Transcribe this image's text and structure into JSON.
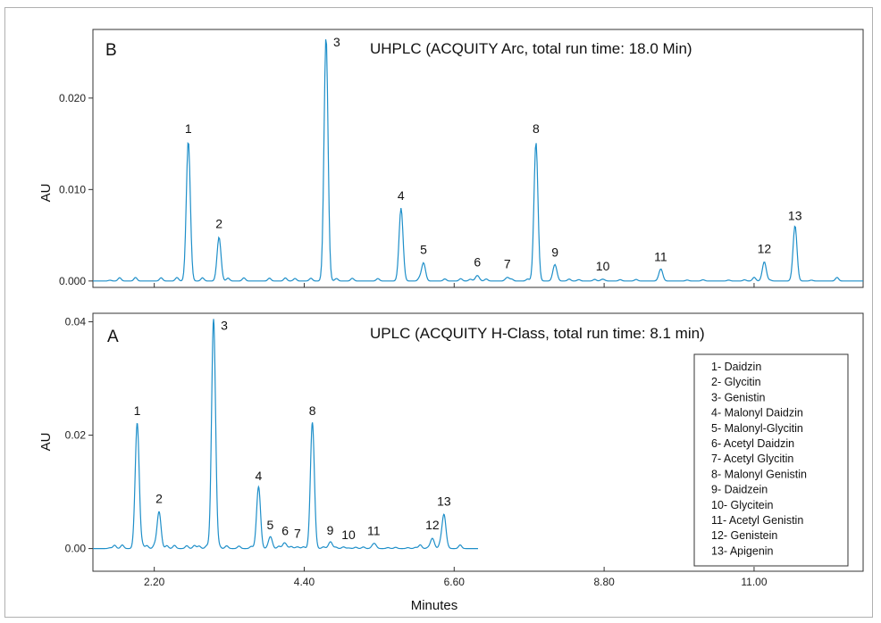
{
  "chart_data": [
    {
      "panel": "B",
      "type": "line",
      "title": "UHPLC (ACQUITY Arc, total run time: 18.0 Min)",
      "ylabel": "AU",
      "yticks": [
        "0.000",
        "0.010",
        "0.020"
      ],
      "yvalues": [
        0,
        0.01,
        0.02
      ],
      "ylim": [
        -0.0007,
        0.0275
      ],
      "xlim": [
        1.3,
        12.6
      ],
      "color": "#1f8fc9",
      "peaks": [
        {
          "label": "1",
          "x": 2.7,
          "y": 0.0152
        },
        {
          "label": "2",
          "x": 3.15,
          "y": 0.0048
        },
        {
          "label": "3",
          "x": 4.72,
          "y": 0.0268
        },
        {
          "label": "4",
          "x": 5.82,
          "y": 0.0079
        },
        {
          "label": "5",
          "x": 6.15,
          "y": 0.002
        },
        {
          "label": "6",
          "x": 6.94,
          "y": 0.0006
        },
        {
          "label": "7",
          "x": 7.38,
          "y": 0.0004
        },
        {
          "label": "8",
          "x": 7.8,
          "y": 0.0152
        },
        {
          "label": "9",
          "x": 8.08,
          "y": 0.0017
        },
        {
          "label": "10",
          "x": 8.78,
          "y": 0.0002
        },
        {
          "label": "11",
          "x": 9.63,
          "y": 0.0012
        },
        {
          "label": "12",
          "x": 11.15,
          "y": 0.0021
        },
        {
          "label": "13",
          "x": 11.6,
          "y": 0.0057
        }
      ]
    },
    {
      "panel": "A",
      "type": "line",
      "title": "UPLC (ACQUITY H-Class, total run time: 8.1 min)",
      "ylabel": "AU",
      "yticks": [
        "0.00",
        "0.02",
        "0.04"
      ],
      "yvalues": [
        0,
        0.02,
        0.04
      ],
      "ylim": [
        -0.004,
        0.0415
      ],
      "xlim": [
        1.3,
        12.6
      ],
      "color": "#1f8fc9",
      "peaks": [
        {
          "label": "1",
          "x": 1.95,
          "y": 0.022
        },
        {
          "label": "2",
          "x": 2.27,
          "y": 0.0065
        },
        {
          "label": "3",
          "x": 3.07,
          "y": 0.0405
        },
        {
          "label": "4",
          "x": 3.73,
          "y": 0.0105
        },
        {
          "label": "5",
          "x": 3.9,
          "y": 0.0018
        },
        {
          "label": "6",
          "x": 4.12,
          "y": 0.0008
        },
        {
          "label": "7",
          "x": 4.3,
          "y": 0.0003
        },
        {
          "label": "8",
          "x": 4.52,
          "y": 0.022
        },
        {
          "label": "9",
          "x": 4.78,
          "y": 0.0009
        },
        {
          "label": "10",
          "x": 5.05,
          "y": 0.0001
        },
        {
          "label": "11",
          "x": 5.42,
          "y": 0.0008
        },
        {
          "label": "12",
          "x": 6.28,
          "y": 0.0018
        },
        {
          "label": "13",
          "x": 6.45,
          "y": 0.006
        }
      ]
    }
  ],
  "xaxis": {
    "label": "Minutes",
    "ticks": [
      "2.20",
      "4.40",
      "6.60",
      "8.80",
      "11.00"
    ],
    "tick_values": [
      2.2,
      4.4,
      6.6,
      8.8,
      11.0
    ]
  },
  "legend": [
    "1- Daidzin",
    "2- Glycitin",
    "3- Genistin",
    "4- Malonyl Daidzin",
    "5- Malonyl-Glycitin",
    "6- Acetyl Daidzin",
    "7- Acetyl Glycitin",
    "8- Malonyl Genistin",
    "9- Daidzein",
    "10- Glycitein",
    "11- Acetyl Genistin",
    "12- Genistein",
    "13- Apigenin"
  ]
}
